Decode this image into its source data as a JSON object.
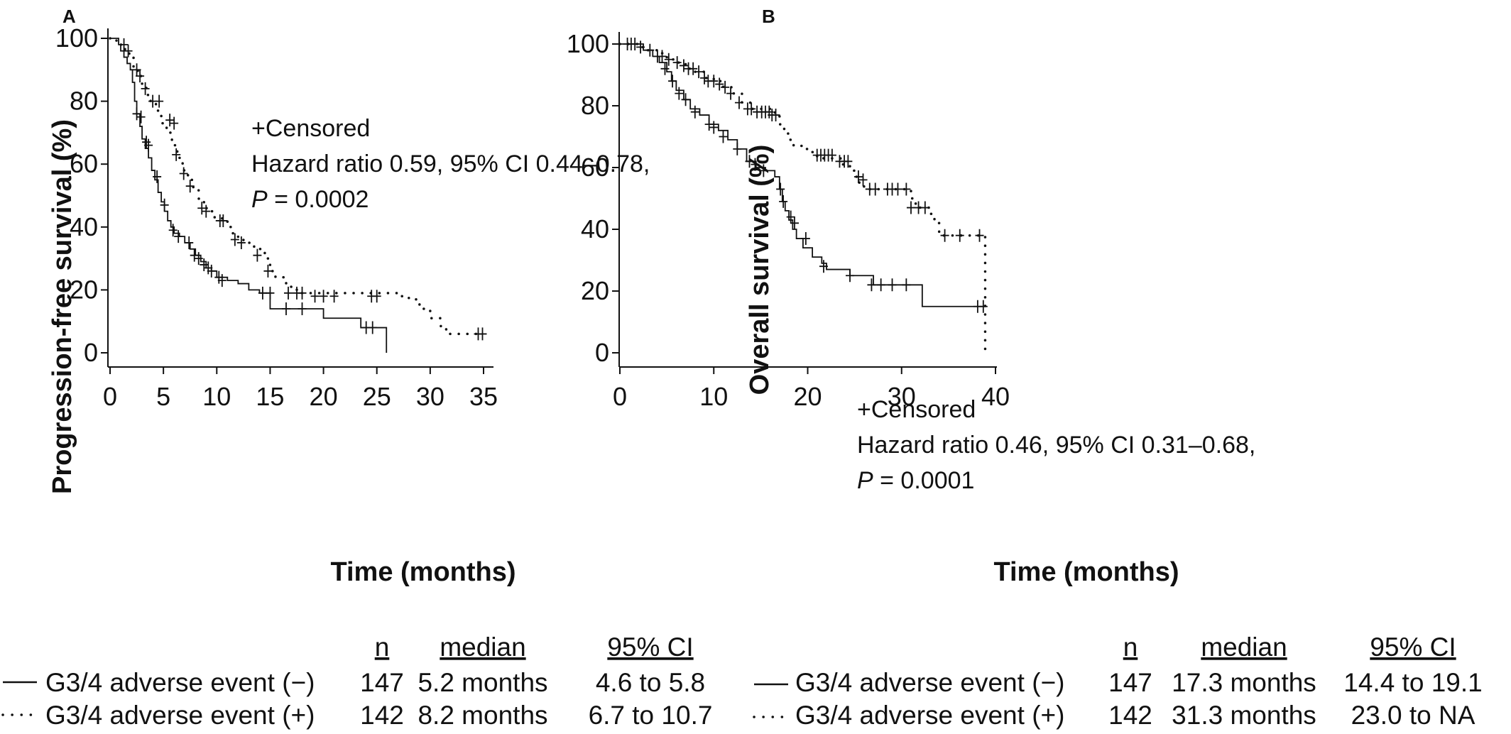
{
  "chart_data": [
    {
      "type": "line",
      "panel": "A",
      "xlabel": "Time (months)",
      "ylabel": "Progression-free survival (%)",
      "xlim": [
        0,
        35
      ],
      "ylim": [
        0,
        100
      ],
      "x_ticks": [
        "0",
        "5",
        "10",
        "15",
        "20",
        "25",
        "30",
        "35"
      ],
      "y_ticks": [
        "0",
        "20",
        "40",
        "60",
        "80",
        "100"
      ],
      "annotation": {
        "censored": "+Censored",
        "hazard": "Hazard ratio 0.59, 95% CI 0.44–0.78,",
        "p_label": "P",
        "p_value": " = 0.0002"
      },
      "series": [
        {
          "name": "G3/4 adverse event (−)",
          "style": "solid",
          "x": [
            0,
            0.8,
            1.0,
            1.3,
            1.6,
            1.9,
            2.1,
            2.3,
            2.5,
            2.8,
            3.0,
            3.3,
            3.6,
            3.9,
            4.2,
            4.5,
            4.8,
            5.1,
            5.4,
            5.7,
            6.0,
            6.5,
            7.0,
            7.5,
            8.0,
            8.5,
            9.0,
            9.5,
            10.0,
            11.0,
            12.0,
            13.0,
            14.0,
            15.0,
            20.0,
            23.5,
            25.9,
            25.9
          ],
          "y": [
            100,
            98,
            96,
            94,
            92,
            90,
            86,
            80,
            76,
            72,
            68,
            65,
            62,
            58,
            55,
            51,
            48,
            45,
            42,
            40,
            38,
            37,
            35,
            33,
            31,
            29,
            27,
            26,
            24,
            23,
            22,
            20,
            19,
            14,
            11,
            8,
            8,
            0
          ],
          "censored": [
            [
              2.5,
              76
            ],
            [
              2.9,
              75
            ],
            [
              3.4,
              67
            ],
            [
              3.6,
              66
            ],
            [
              4.4,
              56
            ],
            [
              5.1,
              47
            ],
            [
              5.9,
              39
            ],
            [
              6.4,
              37
            ],
            [
              7.4,
              35
            ],
            [
              7.9,
              31
            ],
            [
              8.3,
              30
            ],
            [
              8.8,
              28
            ],
            [
              9.2,
              27
            ],
            [
              9.5,
              26
            ],
            [
              10.2,
              24
            ],
            [
              10.5,
              23
            ],
            [
              14.3,
              19
            ],
            [
              15.0,
              19
            ],
            [
              16.5,
              14
            ],
            [
              18.0,
              14
            ],
            [
              24.0,
              8
            ],
            [
              24.6,
              8
            ]
          ]
        },
        {
          "name": "G3/4 adverse event (+)",
          "style": "dotted",
          "x": [
            0,
            0.6,
            1.0,
            1.4,
            1.8,
            2.2,
            2.6,
            3.0,
            3.4,
            3.8,
            4.3,
            4.8,
            5.3,
            5.8,
            6.3,
            6.8,
            7.3,
            7.8,
            8.3,
            8.8,
            9.3,
            9.8,
            10.5,
            11.0,
            11.5,
            12.0,
            12.5,
            13.5,
            14.5,
            15.0,
            15.5,
            16.5,
            17.5,
            27.0,
            28.0,
            29.0,
            30.0,
            31.0,
            31.5,
            35.0
          ],
          "y": [
            100,
            99,
            98,
            96,
            94,
            91,
            88,
            85,
            82,
            80,
            77,
            73,
            70,
            66,
            62,
            58,
            55,
            52,
            49,
            46,
            45,
            43,
            42,
            40,
            38,
            36,
            35,
            33,
            30,
            26,
            24,
            21,
            19,
            18,
            17,
            14,
            11,
            8,
            6,
            6
          ],
          "censored": [
            [
              1.3,
              98
            ],
            [
              1.7,
              96
            ],
            [
              2.5,
              90
            ],
            [
              2.8,
              88
            ],
            [
              3.3,
              84
            ],
            [
              4.0,
              80
            ],
            [
              4.6,
              80
            ],
            [
              5.6,
              74
            ],
            [
              6.0,
              73
            ],
            [
              6.2,
              63
            ],
            [
              6.9,
              57
            ],
            [
              7.5,
              53
            ],
            [
              8.6,
              46
            ],
            [
              9.0,
              45
            ],
            [
              10.3,
              42
            ],
            [
              10.6,
              42
            ],
            [
              11.7,
              36
            ],
            [
              12.3,
              35
            ],
            [
              13.8,
              31
            ],
            [
              14.8,
              26
            ],
            [
              16.7,
              19
            ],
            [
              17.5,
              19
            ],
            [
              18.0,
              19
            ],
            [
              19.2,
              18
            ],
            [
              20.0,
              18
            ],
            [
              21.0,
              18
            ],
            [
              24.5,
              18
            ],
            [
              25.0,
              18
            ],
            [
              34.5,
              6
            ],
            [
              34.9,
              6
            ]
          ]
        }
      ],
      "legend_table": {
        "headers": [
          "n",
          "median",
          "95% CI"
        ],
        "rows": [
          {
            "label": "G3/4 adverse event (−)",
            "n": "147",
            "median": "5.2 months",
            "ci": "4.6 to 5.8"
          },
          {
            "label": "G3/4 adverse event (+)",
            "n": "142",
            "median": "8.2 months",
            "ci": "6.7 to 10.7"
          }
        ]
      }
    },
    {
      "type": "line",
      "panel": "B",
      "xlabel": "Time (months)",
      "ylabel": "Overall survival (%)",
      "xlim": [
        0,
        40
      ],
      "ylim": [
        0,
        100
      ],
      "x_ticks": [
        "0",
        "10",
        "20",
        "30",
        "40"
      ],
      "y_ticks": [
        "0",
        "20",
        "40",
        "60",
        "80",
        "100"
      ],
      "annotation": {
        "censored": "+Censored",
        "hazard": "Hazard ratio 0.46, 95% CI 0.31–0.68,",
        "p_label": "P",
        "p_value": " = 0.0001"
      },
      "series": [
        {
          "name": "G3/4 adverse event (−)",
          "style": "solid",
          "x": [
            0,
            2.5,
            3.5,
            4.2,
            5.0,
            5.5,
            6.0,
            6.8,
            7.5,
            8.5,
            9.5,
            10.5,
            11.5,
            12.5,
            13.5,
            14.5,
            15.5,
            16.5,
            17.0,
            17.3,
            17.6,
            18.0,
            18.4,
            18.8,
            19.5,
            20.5,
            21.5,
            22.0,
            24.5,
            27.0,
            32.2,
            38.0,
            39.0
          ],
          "y": [
            100,
            98,
            96,
            94,
            91,
            88,
            85,
            82,
            79,
            77,
            74,
            72,
            69,
            66,
            62,
            60,
            59,
            57,
            53,
            49,
            46,
            43,
            40,
            37,
            34,
            31,
            29,
            27,
            25,
            22,
            15,
            15,
            15
          ],
          "censored": [
            [
              4.8,
              92
            ],
            [
              5.6,
              88
            ],
            [
              6.3,
              84
            ],
            [
              7.0,
              82
            ],
            [
              8.0,
              78
            ],
            [
              9.5,
              74
            ],
            [
              10.0,
              73
            ],
            [
              11.0,
              70
            ],
            [
              12.5,
              66
            ],
            [
              13.8,
              62
            ],
            [
              14.4,
              61
            ],
            [
              15.3,
              59
            ],
            [
              17.1,
              53
            ],
            [
              17.4,
              49
            ],
            [
              18.2,
              44
            ],
            [
              18.6,
              42
            ],
            [
              19.8,
              37
            ],
            [
              21.7,
              28
            ],
            [
              24.5,
              25
            ],
            [
              26.8,
              22
            ],
            [
              27.8,
              22
            ],
            [
              29.0,
              22
            ],
            [
              30.5,
              22
            ],
            [
              38.1,
              15
            ],
            [
              38.7,
              15
            ]
          ]
        },
        {
          "name": "G3/4 adverse event (+)",
          "style": "dotted",
          "x": [
            0,
            2.0,
            3.0,
            4.0,
            5.0,
            6.0,
            7.0,
            8.0,
            9.0,
            10.0,
            11.0,
            12.0,
            13.0,
            14.0,
            16.5,
            17.0,
            17.5,
            18.0,
            18.5,
            19.5,
            20.5,
            21.0,
            23.5,
            24.5,
            25.0,
            25.5,
            26.0,
            31.0,
            31.5,
            33.0,
            33.5,
            34.0,
            38.9,
            38.9
          ],
          "y": [
            100,
            99,
            98,
            97,
            95,
            94,
            92,
            91,
            89,
            88,
            86,
            84,
            81,
            79,
            77,
            74,
            71,
            69,
            67,
            66,
            65,
            63,
            61,
            59,
            57,
            55,
            53,
            50,
            47,
            45,
            42,
            38,
            38,
            0
          ],
          "censored": [
            [
              0.8,
              100
            ],
            [
              1.2,
              100
            ],
            [
              1.6,
              100
            ],
            [
              2.2,
              99
            ],
            [
              3.2,
              98
            ],
            [
              4.0,
              96
            ],
            [
              4.5,
              96
            ],
            [
              5.2,
              95
            ],
            [
              6.1,
              94
            ],
            [
              6.8,
              93
            ],
            [
              7.3,
              92
            ],
            [
              7.8,
              92
            ],
            [
              8.4,
              91
            ],
            [
              9.0,
              89
            ],
            [
              9.4,
              88
            ],
            [
              10.0,
              88
            ],
            [
              10.6,
              87
            ],
            [
              11.2,
              86
            ],
            [
              11.8,
              84
            ],
            [
              12.7,
              81
            ],
            [
              13.6,
              79
            ],
            [
              14.0,
              79
            ],
            [
              14.6,
              78
            ],
            [
              15.1,
              78
            ],
            [
              15.5,
              78
            ],
            [
              15.9,
              78
            ],
            [
              16.2,
              77
            ],
            [
              16.6,
              77
            ],
            [
              21.0,
              64
            ],
            [
              21.4,
              64
            ],
            [
              21.8,
              64
            ],
            [
              22.2,
              64
            ],
            [
              22.6,
              64
            ],
            [
              23.4,
              62
            ],
            [
              23.9,
              62
            ],
            [
              24.3,
              62
            ],
            [
              25.4,
              57
            ],
            [
              25.9,
              56
            ],
            [
              26.6,
              53
            ],
            [
              27.2,
              53
            ],
            [
              28.5,
              53
            ],
            [
              29.0,
              53
            ],
            [
              29.6,
              53
            ],
            [
              30.5,
              53
            ],
            [
              31.0,
              47
            ],
            [
              31.8,
              47
            ],
            [
              32.5,
              47
            ],
            [
              34.6,
              38
            ],
            [
              36.2,
              38
            ],
            [
              38.3,
              38
            ]
          ]
        }
      ],
      "legend_table": {
        "headers": [
          "n",
          "median",
          "95% CI"
        ],
        "rows": [
          {
            "label": "G3/4 adverse event (−)",
            "n": "147",
            "median": "17.3 months",
            "ci": "14.4 to 19.1"
          },
          {
            "label": "G3/4 adverse event (+)",
            "n": "142",
            "median": "31.3 months",
            "ci": "23.0 to  NA"
          }
        ]
      }
    }
  ]
}
